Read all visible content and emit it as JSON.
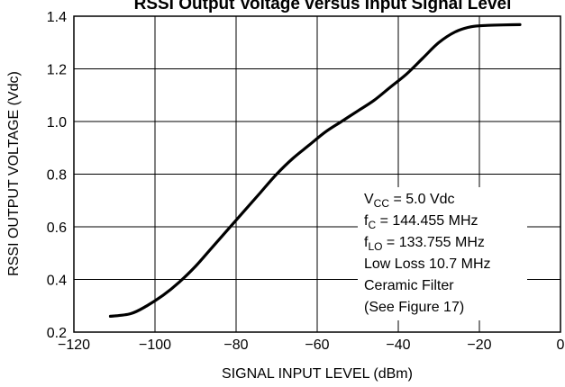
{
  "chart_data": {
    "type": "line",
    "title": "RSSI Output Voltage versus Input Signal Level",
    "xlabel": "SIGNAL INPUT LEVEL (dBm)",
    "ylabel": "RSSI OUTPUT VOLTAGE (Vdc)",
    "xlim": [
      -120,
      0
    ],
    "ylim": [
      0.2,
      1.4
    ],
    "xticks": [
      -120,
      -100,
      -80,
      -60,
      -40,
      -20,
      0
    ],
    "xtick_labels": [
      "−120",
      "−100",
      "−80",
      "−60",
      "−40",
      "−20",
      "0"
    ],
    "yticks": [
      0.2,
      0.4,
      0.6,
      0.8,
      1.0,
      1.2,
      1.4
    ],
    "ytick_labels": [
      "0.2",
      "0.4",
      "0.6",
      "0.8",
      "1.0",
      "1.2",
      "1.4"
    ],
    "grid": true,
    "series": [
      {
        "color": "#000000",
        "x": [
          -111,
          -106,
          -102,
          -98,
          -94,
          -90,
          -86,
          -82,
          -78,
          -74,
          -70,
          -66,
          -62,
          -58,
          -54,
          -50,
          -46,
          -42,
          -38,
          -34,
          -30,
          -26,
          -22,
          -18,
          -14,
          -10
        ],
        "y": [
          0.26,
          0.27,
          0.3,
          0.34,
          0.39,
          0.45,
          0.52,
          0.59,
          0.66,
          0.73,
          0.8,
          0.86,
          0.91,
          0.96,
          1.0,
          1.04,
          1.08,
          1.13,
          1.18,
          1.24,
          1.3,
          1.34,
          1.36,
          1.365,
          1.367,
          1.368
        ]
      }
    ],
    "annotation": {
      "vcc_main": "V",
      "vcc_sub": "CC",
      "vcc_rest": " = 5.0 Vdc",
      "fc_main": "f",
      "fc_sub": "C",
      "fc_rest": " = 144.455 MHz",
      "flo_main": "f",
      "flo_sub": "LO",
      "flo_rest": " = 133.755 MHz",
      "line4": "Low Loss 10.7 MHz",
      "line5": "Ceramic Filter",
      "line6": "(See Figure 17)"
    }
  }
}
